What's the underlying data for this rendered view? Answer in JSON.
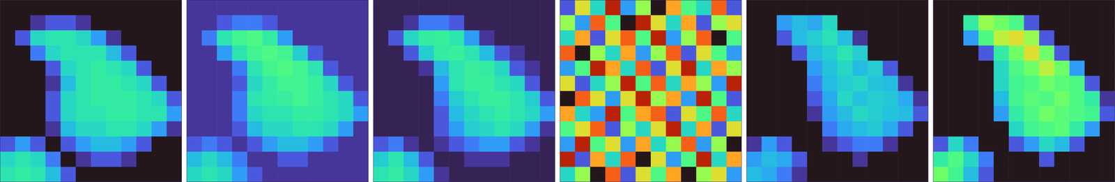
{
  "chart_data": [
    {
      "type": "heatmap",
      "tick_labels": false,
      "zlim": [
        0,
        1
      ],
      "z": [
        [
          0,
          0,
          0,
          0,
          0,
          0,
          0,
          0,
          0,
          0,
          0,
          0
        ],
        [
          0,
          0,
          0.05,
          0.1,
          0.1,
          0.05,
          0,
          0,
          0,
          0,
          0,
          0
        ],
        [
          0,
          0.1,
          0.3,
          0.33,
          0.33,
          0.3,
          0.2,
          0.05,
          0,
          0,
          0,
          0
        ],
        [
          0,
          0,
          0.15,
          0.3,
          0.33,
          0.33,
          0.33,
          0.25,
          0.1,
          0,
          0,
          0
        ],
        [
          0,
          0,
          0,
          0.1,
          0.3,
          0.33,
          0.35,
          0.33,
          0.3,
          0.1,
          0,
          0
        ],
        [
          0,
          0,
          0,
          0.05,
          0.25,
          0.33,
          0.35,
          0.35,
          0.33,
          0.3,
          0.1,
          0
        ],
        [
          0,
          0,
          0,
          0.1,
          0.3,
          0.33,
          0.35,
          0.35,
          0.35,
          0.33,
          0.3,
          0.1
        ],
        [
          0,
          0,
          0,
          0.1,
          0.3,
          0.33,
          0.33,
          0.35,
          0.35,
          0.33,
          0.33,
          0.2
        ],
        [
          0,
          0,
          0,
          0.05,
          0.25,
          0.3,
          0.3,
          0.33,
          0.33,
          0.3,
          0.2,
          0.05
        ],
        [
          0.1,
          0.2,
          0.1,
          0,
          0.1,
          0.2,
          0.25,
          0.25,
          0.2,
          0.1,
          0,
          0
        ],
        [
          0.3,
          0.33,
          0.3,
          0.15,
          0,
          0.05,
          0.1,
          0.1,
          0.05,
          0,
          0,
          0
        ],
        [
          0.33,
          0.35,
          0.33,
          0.25,
          0.1,
          0,
          0,
          0,
          0,
          0,
          0,
          0
        ]
      ]
    },
    {
      "type": "heatmap",
      "tick_labels": false,
      "zlim": [
        0,
        1
      ],
      "z": [
        [
          0.05,
          0.05,
          0.05,
          0.05,
          0.05,
          0.05,
          0.05,
          0.05,
          0.05,
          0.05,
          0.05,
          0.05
        ],
        [
          0.05,
          0.05,
          0.1,
          0.15,
          0.15,
          0.1,
          0.05,
          0.05,
          0.05,
          0.05,
          0.05,
          0.05
        ],
        [
          0.05,
          0.15,
          0.33,
          0.38,
          0.4,
          0.35,
          0.2,
          0.05,
          0.05,
          0.05,
          0.05,
          0.05
        ],
        [
          0.05,
          0.05,
          0.2,
          0.33,
          0.38,
          0.4,
          0.38,
          0.28,
          0.1,
          0.05,
          0.05,
          0.05
        ],
        [
          0.05,
          0.05,
          0.05,
          0.15,
          0.33,
          0.38,
          0.4,
          0.38,
          0.33,
          0.1,
          0.05,
          0.05
        ],
        [
          0.05,
          0.05,
          0.05,
          0.1,
          0.3,
          0.35,
          0.38,
          0.38,
          0.36,
          0.3,
          0.1,
          0.05
        ],
        [
          0.05,
          0.05,
          0.05,
          0.15,
          0.33,
          0.35,
          0.36,
          0.38,
          0.36,
          0.33,
          0.3,
          0.1
        ],
        [
          0.05,
          0.05,
          0.05,
          0.15,
          0.3,
          0.33,
          0.33,
          0.35,
          0.35,
          0.33,
          0.3,
          0.2
        ],
        [
          0.05,
          0.05,
          0.05,
          0.1,
          0.25,
          0.3,
          0.3,
          0.33,
          0.33,
          0.3,
          0.2,
          0.05
        ],
        [
          0.1,
          0.15,
          0.1,
          0.05,
          0.1,
          0.2,
          0.25,
          0.25,
          0.2,
          0.1,
          0.05,
          0.05
        ],
        [
          0.25,
          0.3,
          0.25,
          0.15,
          0.05,
          0.05,
          0.1,
          0.1,
          0.05,
          0.05,
          0.05,
          0.05
        ],
        [
          0.3,
          0.33,
          0.3,
          0.2,
          0.1,
          0.05,
          0.05,
          0.05,
          0.05,
          0.05,
          0.05,
          0.05
        ]
      ]
    },
    {
      "type": "heatmap",
      "tick_labels": false,
      "zlim": [
        0,
        1
      ],
      "z": [
        [
          0.02,
          0.02,
          0.02,
          0.02,
          0.02,
          0.02,
          0.02,
          0.02,
          0.02,
          0.02,
          0.02,
          0.02
        ],
        [
          0.02,
          0.02,
          0.05,
          0.15,
          0.15,
          0.1,
          0.02,
          0.02,
          0.02,
          0.02,
          0.02,
          0.02
        ],
        [
          0.02,
          0.1,
          0.3,
          0.35,
          0.36,
          0.33,
          0.2,
          0.05,
          0.02,
          0.02,
          0.02,
          0.02
        ],
        [
          0.02,
          0.02,
          0.1,
          0.28,
          0.35,
          0.36,
          0.33,
          0.25,
          0.1,
          0.05,
          0.02,
          0.02
        ],
        [
          0.02,
          0.02,
          0.02,
          0.05,
          0.25,
          0.33,
          0.36,
          0.35,
          0.3,
          0.1,
          0.05,
          0.02
        ],
        [
          0.02,
          0.02,
          0.02,
          0.02,
          0.2,
          0.33,
          0.36,
          0.36,
          0.33,
          0.3,
          0.1,
          0.02
        ],
        [
          0.02,
          0.02,
          0.02,
          0.02,
          0.15,
          0.28,
          0.33,
          0.36,
          0.36,
          0.33,
          0.28,
          0.1
        ],
        [
          0.02,
          0.02,
          0.02,
          0.02,
          0.1,
          0.25,
          0.3,
          0.33,
          0.35,
          0.33,
          0.3,
          0.2
        ],
        [
          0.02,
          0.02,
          0.02,
          0.02,
          0.1,
          0.2,
          0.28,
          0.3,
          0.33,
          0.3,
          0.2,
          0.05
        ],
        [
          0.1,
          0.15,
          0.05,
          0.02,
          0.05,
          0.1,
          0.15,
          0.2,
          0.2,
          0.1,
          0.05,
          0.02
        ],
        [
          0.28,
          0.33,
          0.25,
          0.1,
          0.02,
          0.02,
          0.05,
          0.05,
          0.05,
          0.02,
          0.02,
          0.02
        ],
        [
          0.33,
          0.35,
          0.3,
          0.2,
          0.05,
          0.02,
          0.02,
          0.02,
          0.02,
          0.02,
          0.02,
          0.02
        ]
      ]
    },
    {
      "type": "heatmap",
      "tick_labels": false,
      "zlim": [
        0,
        1
      ],
      "z": [
        [
          0.1,
          0.6,
          0.3,
          0.9,
          0.2,
          0.5,
          0,
          0.7,
          0.4,
          0.3,
          0.8,
          0.1
        ],
        [
          0.5,
          0.2,
          0.8,
          0.4,
          0,
          0.9,
          0.6,
          0.3,
          0.7,
          0.1,
          0.5,
          0.6
        ],
        [
          0.3,
          0.7,
          0.1,
          0.6,
          0.8,
          0.4,
          0.9,
          0.2,
          0.5,
          0.8,
          0,
          0.4
        ],
        [
          0.8,
          0,
          0.5,
          0.3,
          0.7,
          0.2,
          0.5,
          0.8,
          0.1,
          0.6,
          0.4,
          0.2
        ],
        [
          0.2,
          0.4,
          0.9,
          0.7,
          0.3,
          0.8,
          0.1,
          0.6,
          0.9,
          0.3,
          0.7,
          0.5
        ],
        [
          0.6,
          0.1,
          0.3,
          0.5,
          0.9,
          0.4,
          0.8,
          0.3,
          0.7,
          0.5,
          0.2,
          0.9
        ],
        [
          0,
          0.8,
          0.6,
          0.2,
          0.6,
          0.9,
          0.5,
          0.7,
          0.2,
          0.9,
          0.4,
          0.1
        ],
        [
          0.7,
          0.3,
          0.2,
          0.9,
          0.4,
          0.7,
          0.8,
          0.1,
          0.6,
          0.4,
          0.8,
          0.3
        ],
        [
          0.4,
          0.6,
          0.8,
          0.1,
          0.5,
          0.3,
          0.6,
          0.9,
          0.3,
          0.7,
          0.1,
          0.6
        ],
        [
          0.2,
          0.9,
          0.4,
          0.6,
          0.2,
          0.7,
          0.3,
          0.5,
          0.8,
          0.2,
          0.5,
          0
        ],
        [
          0.9,
          0.1,
          0.7,
          0.3,
          0.8,
          0,
          0.6,
          0.2,
          0.4,
          0.9,
          0.3,
          0.7
        ],
        [
          0.3,
          0.5,
          0,
          0.8,
          0.1,
          0.6,
          0.4,
          0.7,
          0,
          0.5,
          0.6,
          0.2
        ]
      ]
    },
    {
      "type": "heatmap",
      "tick_labels": false,
      "zlim": [
        0,
        1
      ],
      "z": [
        [
          0,
          0,
          0,
          0,
          0,
          0,
          0,
          0,
          0,
          0,
          0,
          0
        ],
        [
          0,
          0,
          0.2,
          0.25,
          0.22,
          0.3,
          0,
          0,
          0,
          0,
          0,
          0
        ],
        [
          0,
          0,
          0.1,
          0.25,
          0.28,
          0.32,
          0.25,
          0.05,
          0,
          0,
          0,
          0
        ],
        [
          0,
          0,
          0,
          0.1,
          0.25,
          0.28,
          0.33,
          0.28,
          0,
          0,
          0,
          0
        ],
        [
          0,
          0,
          0,
          0,
          0.2,
          0.26,
          0.3,
          0.25,
          0.28,
          0.1,
          0,
          0
        ],
        [
          0,
          0,
          0,
          0,
          0.15,
          0.25,
          0.28,
          0.3,
          0.26,
          0.25,
          0.05,
          0
        ],
        [
          0,
          0,
          0,
          0,
          0.1,
          0.22,
          0.3,
          0.26,
          0.28,
          0.27,
          0.22,
          0.05
        ],
        [
          0,
          0,
          0,
          0,
          0.05,
          0.2,
          0.25,
          0.3,
          0.28,
          0.26,
          0.25,
          0.1
        ],
        [
          0,
          0,
          0,
          0,
          0,
          0.15,
          0.22,
          0.25,
          0.27,
          0.22,
          0.1,
          0
        ],
        [
          0.05,
          0.2,
          0.1,
          0,
          0,
          0.05,
          0.1,
          0.15,
          0.15,
          0.05,
          0,
          0
        ],
        [
          0.2,
          0.25,
          0.22,
          0.1,
          0,
          0,
          0,
          0.05,
          0,
          0,
          0,
          0
        ],
        [
          0.25,
          0.22,
          0.15,
          0.05,
          0,
          0,
          0,
          0,
          0,
          0,
          0,
          0
        ]
      ]
    },
    {
      "type": "heatmap",
      "tick_labels": false,
      "zlim": [
        0,
        1
      ],
      "z": [
        [
          0,
          0,
          0,
          0,
          0,
          0,
          0,
          0,
          0,
          0,
          0,
          0
        ],
        [
          0,
          0,
          0.35,
          0.5,
          0.45,
          0.4,
          0.1,
          0,
          0,
          0,
          0,
          0
        ],
        [
          0,
          0,
          0.2,
          0.4,
          0.55,
          0.6,
          0.5,
          0.1,
          0,
          0,
          0,
          0
        ],
        [
          0,
          0,
          0,
          0.1,
          0.35,
          0.45,
          0.6,
          0.45,
          0.1,
          0,
          0,
          0
        ],
        [
          0,
          0,
          0,
          0,
          0.3,
          0.4,
          0.45,
          0.55,
          0.45,
          0.2,
          0,
          0
        ],
        [
          0,
          0,
          0,
          0,
          0.3,
          0.38,
          0.4,
          0.45,
          0.42,
          0.4,
          0.1,
          0
        ],
        [
          0,
          0,
          0,
          0,
          0.25,
          0.38,
          0.42,
          0.4,
          0.45,
          0.4,
          0.35,
          0.05
        ],
        [
          0,
          0,
          0,
          0,
          0.2,
          0.35,
          0.4,
          0.45,
          0.42,
          0.4,
          0.38,
          0.1
        ],
        [
          0,
          0,
          0,
          0,
          0,
          0.3,
          0.38,
          0.4,
          0.42,
          0.35,
          0.2,
          0
        ],
        [
          0.1,
          0.3,
          0.15,
          0,
          0,
          0.1,
          0.2,
          0.3,
          0.25,
          0.1,
          0,
          0
        ],
        [
          0.35,
          0.4,
          0.3,
          0.15,
          0,
          0,
          0,
          0.1,
          0,
          0,
          0,
          0
        ],
        [
          0.45,
          0.38,
          0.25,
          0.1,
          0,
          0,
          0,
          0,
          0,
          0,
          0,
          0
        ]
      ]
    }
  ]
}
